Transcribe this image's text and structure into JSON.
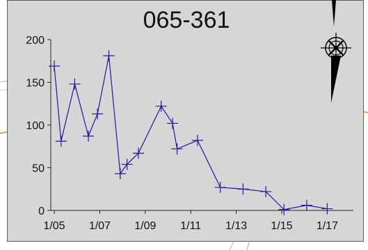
{
  "chart_data": {
    "type": "line",
    "title": "065-361",
    "xlabel": "",
    "ylabel": "",
    "x": [
      "1/05",
      "1/05",
      "1/06",
      "1/06",
      "1/07",
      "1/07",
      "1/08",
      "1/08",
      "1/09",
      "1/10",
      "1/10",
      "1/10",
      "1/12",
      "1/13",
      "1/14",
      "1/15",
      "1/16",
      "1/17",
      "1/18"
    ],
    "x_days": [
      0,
      0.3,
      0.9,
      1.5,
      1.9,
      2.4,
      2.9,
      3.2,
      3.7,
      4.7,
      5.2,
      5.4,
      6.3,
      7.3,
      8.3,
      9.3,
      10.1,
      11.1,
      12.0
    ],
    "values": [
      169,
      81,
      148,
      87,
      113,
      181,
      43,
      54,
      67,
      122,
      102,
      72,
      82,
      27,
      25,
      22,
      1,
      6,
      2
    ],
    "x_ticks": [
      "1/05",
      "1/07",
      "1/09",
      "1/11",
      "1/13",
      "1/15",
      "1/17"
    ],
    "y_ticks": [
      0,
      50,
      100,
      150,
      200
    ],
    "ylim": [
      0,
      200
    ],
    "grid": false,
    "marker": "plus",
    "line_color": "#1a1aa0",
    "panel_color": "#d6d6d6"
  },
  "compass_icon": "compass-rose-icon",
  "north_arrow_icon": "north-arrow-icon"
}
